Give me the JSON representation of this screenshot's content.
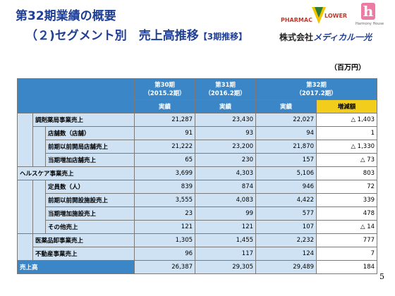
{
  "header": {
    "title_line1": "第32期業績の概要",
    "title_line2": "（２)セグメント別　売上高推移",
    "title_line2_suffix": "【3期推移】",
    "unit": "（百万円）",
    "page_number": "5"
  },
  "logos": {
    "pharmac_left": "PHARMAC",
    "pharmac_right": "LOWER",
    "harmony_letter": "h",
    "harmony_text": "Harmony House",
    "company_prefix": "株式会社",
    "company_brand": "メディカル一光"
  },
  "colors": {
    "title": "#1f3f95",
    "header_blue": "#3b86c6",
    "cell_light_blue": "#cfe2f3",
    "highlight_yellow": "#f2cd1c"
  },
  "table": {
    "periods": [
      {
        "name": "第30期",
        "date": "（2015.2期）"
      },
      {
        "name": "第31期",
        "date": "（2016.2期）"
      },
      {
        "name": "第32期",
        "date": "（2017.2期）"
      }
    ],
    "actual_label": "実績",
    "diff_label": "増減額",
    "rows": [
      {
        "label": "調剤薬局事業売上",
        "v30": "21,287",
        "v31": "23,430",
        "v32": "22,027",
        "diff": "△ 1,403"
      },
      {
        "label": "店舗数（店舗）",
        "v30": "91",
        "v31": "93",
        "v32": "94",
        "diff": "1"
      },
      {
        "label": "前期以前開局店舗売上",
        "v30": "21,222",
        "v31": "23,200",
        "v32": "21,870",
        "diff": "△ 1,330"
      },
      {
        "label": "当期増加店舗売上",
        "v30": "65",
        "v31": "230",
        "v32": "157",
        "diff": "△ 73"
      },
      {
        "label": "ヘルスケア事業売上",
        "v30": "3,699",
        "v31": "4,303",
        "v32": "5,106",
        "diff": "803"
      },
      {
        "label": "定員数（人）",
        "v30": "839",
        "v31": "874",
        "v32": "946",
        "diff": "72"
      },
      {
        "label": "前期以前開設施設売上",
        "v30": "3,555",
        "v31": "4,083",
        "v32": "4,422",
        "diff": "339"
      },
      {
        "label": "当期増加施設売上",
        "v30": "23",
        "v31": "99",
        "v32": "577",
        "diff": "478"
      },
      {
        "label": "その他売上",
        "v30": "121",
        "v31": "121",
        "v32": "107",
        "diff": "△ 14"
      },
      {
        "label": "医薬品卸事業売上",
        "v30": "1,305",
        "v31": "1,455",
        "v32": "2,232",
        "diff": "777"
      },
      {
        "label": "不動産事業売上",
        "v30": "96",
        "v31": "117",
        "v32": "124",
        "diff": "7"
      },
      {
        "label": "売上高",
        "v30": "26,387",
        "v31": "29,305",
        "v32": "29,489",
        "diff": "184"
      }
    ]
  }
}
